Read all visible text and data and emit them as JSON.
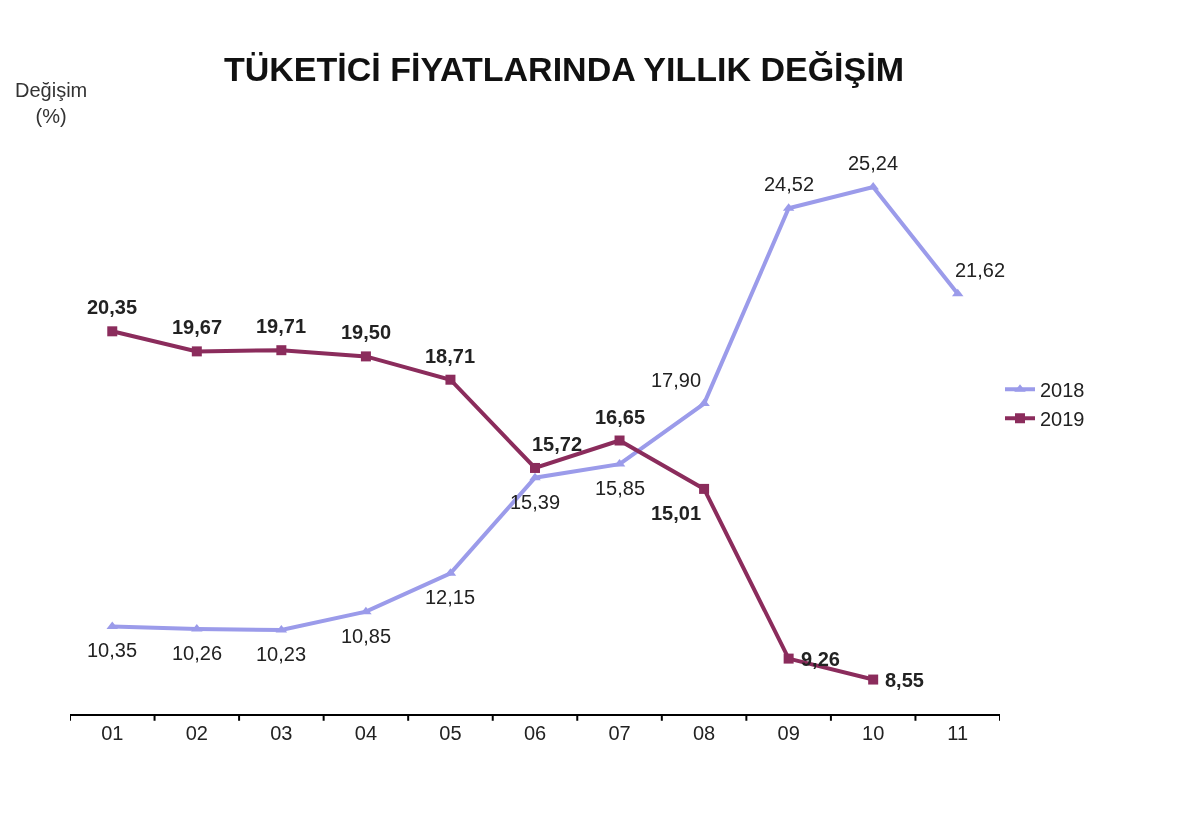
{
  "chart_data": {
    "type": "line",
    "title": "TÜKETİCİ FİYATLARINDA YILLIK DEĞİŞİM",
    "ylabel": "Değişim (%)",
    "categories": [
      "01",
      "02",
      "03",
      "04",
      "05",
      "06",
      "07",
      "08",
      "09",
      "10",
      "11"
    ],
    "series": [
      {
        "name": "2018",
        "color": "#9b9bea",
        "marker": "triangle",
        "values": [
          10.35,
          10.26,
          10.23,
          10.85,
          12.15,
          15.39,
          15.85,
          17.9,
          24.52,
          25.24,
          21.62
        ],
        "value_labels": [
          "10,35",
          "10,26",
          "10,23",
          "10,85",
          "12,15",
          "15,39",
          "15,85",
          "17,90",
          "24,52",
          "25,24",
          "21,62"
        ]
      },
      {
        "name": "2019",
        "color": "#8b2c5c",
        "marker": "square",
        "values": [
          20.35,
          19.67,
          19.71,
          19.5,
          18.71,
          15.72,
          16.65,
          15.01,
          9.26,
          8.55,
          null
        ],
        "value_labels": [
          "20,35",
          "19,67",
          "19,71",
          "19,50",
          "18,71",
          "15,72",
          "16,65",
          "15,01",
          "9,26",
          "8,55",
          null
        ]
      }
    ],
    "legend": "right"
  }
}
